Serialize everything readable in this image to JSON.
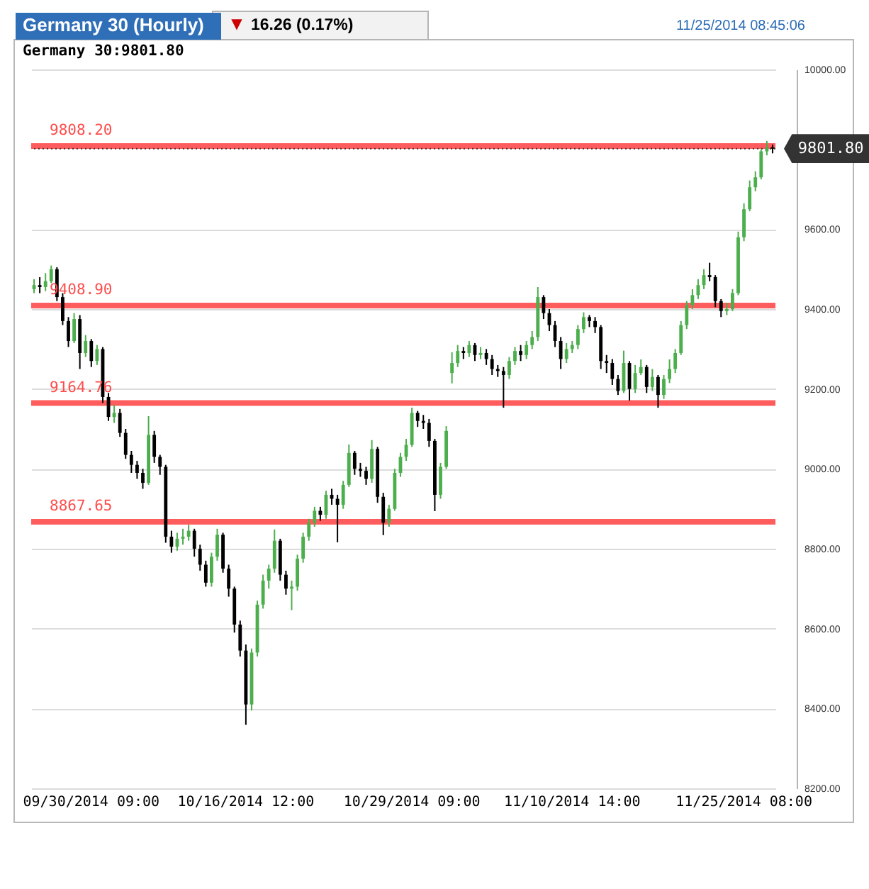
{
  "chart_data": {
    "type": "candlestick",
    "title": "Germany 30 (Hourly)",
    "annotations": [
      "▼",
      "16.26 (0.17%)",
      "11/25/2014 08:45:06",
      "Germany 30:9801.80"
    ],
    "categories": [
      null,
      null,
      null,
      null,
      null,
      null,
      null,
      null,
      null,
      null,
      "09/30/2014 09:00",
      null,
      null,
      null,
      null,
      null,
      null,
      null,
      null,
      null,
      null,
      null,
      null,
      null,
      null,
      null,
      null,
      null,
      null,
      null,
      null,
      null,
      null,
      null,
      null,
      null,
      null,
      "10/16/2014 12:00",
      null,
      null,
      null,
      null,
      null,
      null,
      null,
      null,
      null,
      null,
      null,
      null,
      null,
      null,
      null,
      null,
      null,
      null,
      null,
      null,
      null,
      null,
      null,
      null,
      null,
      null,
      null,
      null,
      "10/29/2014 09:00",
      null,
      null,
      null,
      null,
      null,
      null,
      null,
      null,
      null,
      null,
      null,
      null,
      null,
      null,
      null,
      null,
      null,
      null,
      null,
      null,
      null,
      null,
      null,
      null,
      null,
      null,
      null,
      "11/10/2014 14:00",
      null,
      null,
      null,
      null,
      null,
      null,
      null,
      null,
      null,
      null,
      null,
      null,
      null,
      null,
      null,
      null,
      null,
      null,
      null,
      null,
      null,
      null,
      null,
      null,
      null,
      null,
      null,
      null,
      null,
      "11/25/2014 08:00",
      null,
      null,
      null,
      null,
      null
    ],
    "ohlc": [
      [
        9450,
        9475,
        9440,
        9460
      ],
      [
        9460,
        9480,
        9440,
        9455
      ],
      [
        9455,
        9490,
        9445,
        9470
      ],
      [
        9470,
        9509,
        9465,
        9500
      ],
      [
        9500,
        9505,
        9420,
        9430
      ],
      [
        9430,
        9440,
        9360,
        9370
      ],
      [
        9370,
        9380,
        9305,
        9320
      ],
      [
        9320,
        9390,
        9315,
        9375
      ],
      [
        9375,
        9385,
        9250,
        9290
      ],
      [
        9290,
        9335,
        9280,
        9320
      ],
      [
        9320,
        9325,
        9255,
        9270
      ],
      [
        9270,
        9310,
        9260,
        9300
      ],
      [
        9300,
        9305,
        9165,
        9180
      ],
      [
        9180,
        9190,
        9120,
        9130
      ],
      [
        9130,
        9160,
        9115,
        9140
      ],
      [
        9140,
        9150,
        9080,
        9090
      ],
      [
        9090,
        9100,
        9025,
        9035
      ],
      [
        9035,
        9045,
        8990,
        9010
      ],
      [
        9010,
        9020,
        8975,
        8990
      ],
      [
        8990,
        9000,
        8950,
        8965
      ],
      [
        8965,
        9132,
        8960,
        9085
      ],
      [
        9085,
        9095,
        9015,
        9030
      ],
      [
        9030,
        9035,
        8985,
        9005
      ],
      [
        9005,
        9010,
        8815,
        8830
      ],
      [
        8830,
        8845,
        8790,
        8805
      ],
      [
        8805,
        8840,
        8795,
        8825
      ],
      [
        8825,
        8850,
        8810,
        8830
      ],
      [
        8830,
        8860,
        8820,
        8845
      ],
      [
        8845,
        8850,
        8780,
        8800
      ],
      [
        8800,
        8810,
        8745,
        8760
      ],
      [
        8760,
        8770,
        8705,
        8715
      ],
      [
        8715,
        8790,
        8705,
        8780
      ],
      [
        8780,
        8850,
        8770,
        8835
      ],
      [
        8835,
        8840,
        8740,
        8750
      ],
      [
        8750,
        8760,
        8680,
        8700
      ],
      [
        8700,
        8705,
        8590,
        8610
      ],
      [
        8610,
        8620,
        8530,
        8545
      ],
      [
        8545,
        8560,
        8359,
        8410
      ],
      [
        8410,
        8550,
        8395,
        8540
      ],
      [
        8540,
        8670,
        8530,
        8660
      ],
      [
        8660,
        8735,
        8650,
        8720
      ],
      [
        8720,
        8760,
        8700,
        8750
      ],
      [
        8750,
        8848,
        8740,
        8820
      ],
      [
        8820,
        8825,
        8720,
        8735
      ],
      [
        8735,
        8745,
        8685,
        8700
      ],
      [
        8700,
        8720,
        8646,
        8705
      ],
      [
        8705,
        8785,
        8695,
        8775
      ],
      [
        8775,
        8840,
        8765,
        8830
      ],
      [
        8830,
        8875,
        8820,
        8865
      ],
      [
        8865,
        8905,
        8855,
        8895
      ],
      [
        8895,
        8905,
        8870,
        8885
      ],
      [
        8885,
        8945,
        8875,
        8935
      ],
      [
        8935,
        8950,
        8910,
        8925
      ],
      [
        8925,
        8935,
        8816,
        8910
      ],
      [
        8910,
        8970,
        8900,
        8960
      ],
      [
        8960,
        9061,
        8955,
        9040
      ],
      [
        9040,
        9045,
        8985,
        9000
      ],
      [
        9000,
        9015,
        8980,
        8995
      ],
      [
        8995,
        9005,
        8960,
        8975
      ],
      [
        8975,
        9072,
        8965,
        9050
      ],
      [
        9050,
        9055,
        8915,
        8930
      ],
      [
        8930,
        8940,
        8834,
        8865
      ],
      [
        8865,
        8910,
        8855,
        8900
      ],
      [
        8900,
        9000,
        8895,
        8990
      ],
      [
        8990,
        9040,
        8980,
        9030
      ],
      [
        9030,
        9075,
        9020,
        9060
      ],
      [
        9060,
        9153,
        9055,
        9140
      ],
      [
        9140,
        9145,
        9105,
        9120
      ],
      [
        9120,
        9135,
        9100,
        9115
      ],
      [
        9115,
        9125,
        9055,
        9070
      ],
      [
        9070,
        9075,
        8894,
        8935
      ],
      [
        8935,
        9015,
        8925,
        9005
      ],
      [
        9005,
        9107,
        9000,
        9095
      ],
      [
        9240,
        9292,
        9214,
        9265
      ],
      [
        9265,
        9310,
        9255,
        9295
      ],
      [
        9295,
        9305,
        9275,
        9290
      ],
      [
        9290,
        9320,
        9280,
        9310
      ],
      [
        9310,
        9315,
        9270,
        9285
      ],
      [
        9285,
        9305,
        9275,
        9290
      ],
      [
        9290,
        9300,
        9260,
        9275
      ],
      [
        9275,
        9285,
        9235,
        9250
      ],
      [
        9250,
        9260,
        9230,
        9245
      ],
      [
        9245,
        9255,
        9153,
        9235
      ],
      [
        9235,
        9280,
        9225,
        9270
      ],
      [
        9270,
        9305,
        9260,
        9295
      ],
      [
        9295,
        9310,
        9270,
        9285
      ],
      [
        9285,
        9320,
        9275,
        9310
      ],
      [
        9310,
        9345,
        9300,
        9330
      ],
      [
        9330,
        9455,
        9320,
        9430
      ],
      [
        9430,
        9435,
        9375,
        9390
      ],
      [
        9390,
        9400,
        9345,
        9360
      ],
      [
        9360,
        9370,
        9305,
        9320
      ],
      [
        9320,
        9330,
        9250,
        9275
      ],
      [
        9275,
        9315,
        9265,
        9300
      ],
      [
        9300,
        9320,
        9290,
        9310
      ],
      [
        9310,
        9360,
        9300,
        9350
      ],
      [
        9350,
        9392,
        9340,
        9380
      ],
      [
        9380,
        9385,
        9355,
        9370
      ],
      [
        9370,
        9380,
        9340,
        9355
      ],
      [
        9355,
        9360,
        9250,
        9270
      ],
      [
        9270,
        9285,
        9240,
        9265
      ],
      [
        9265,
        9275,
        9210,
        9225
      ],
      [
        9225,
        9235,
        9185,
        9195
      ],
      [
        9195,
        9296,
        9190,
        9265
      ],
      [
        9265,
        9270,
        9171,
        9200
      ],
      [
        9200,
        9260,
        9190,
        9240
      ],
      [
        9240,
        9274,
        9235,
        9255
      ],
      [
        9255,
        9260,
        9190,
        9205
      ],
      [
        9205,
        9250,
        9195,
        9230
      ],
      [
        9230,
        9235,
        9153,
        9185
      ],
      [
        9185,
        9235,
        9175,
        9225
      ],
      [
        9225,
        9274,
        9215,
        9250
      ],
      [
        9250,
        9300,
        9240,
        9290
      ],
      [
        9290,
        9370,
        9285,
        9360
      ],
      [
        9360,
        9420,
        9350,
        9410
      ],
      [
        9410,
        9450,
        9400,
        9435
      ],
      [
        9435,
        9475,
        9425,
        9460
      ],
      [
        9460,
        9500,
        9450,
        9485
      ],
      [
        9485,
        9516,
        9470,
        9480
      ],
      [
        9480,
        9485,
        9405,
        9420
      ],
      [
        9420,
        9425,
        9380,
        9395
      ],
      [
        9395,
        9416,
        9385,
        9400
      ],
      [
        9400,
        9450,
        9395,
        9440
      ],
      [
        9440,
        9594,
        9435,
        9580
      ],
      [
        9580,
        9665,
        9570,
        9650
      ],
      [
        9650,
        9722,
        9645,
        9705
      ],
      [
        9705,
        9745,
        9695,
        9730
      ],
      [
        9730,
        9800,
        9725,
        9795
      ],
      [
        9795,
        9821,
        9785,
        9805
      ],
      [
        9805,
        9812,
        9790,
        9801.8
      ]
    ],
    "colors": [
      "#4cae4c",
      "#000000",
      "#4cae4c",
      "#4cae4c",
      "#000000",
      "#000000",
      "#000000",
      "#4cae4c",
      "#000000",
      "#4cae4c",
      "#000000",
      "#4cae4c",
      "#000000",
      "#000000",
      "#4cae4c",
      "#000000",
      "#000000",
      "#000000",
      "#000000",
      "#000000",
      "#4cae4c",
      "#000000",
      "#000000",
      "#000000",
      "#000000",
      "#4cae4c",
      "#4cae4c",
      "#4cae4c",
      "#000000",
      "#000000",
      "#000000",
      "#4cae4c",
      "#4cae4c",
      "#000000",
      "#000000",
      "#000000",
      "#000000",
      "#000000",
      "#4cae4c",
      "#4cae4c",
      "#4cae4c",
      "#4cae4c",
      "#4cae4c",
      "#000000",
      "#000000",
      "#4cae4c",
      "#4cae4c",
      "#4cae4c",
      "#4cae4c",
      "#4cae4c",
      "#000000",
      "#4cae4c",
      "#000000",
      "#000000",
      "#4cae4c",
      "#4cae4c",
      "#000000",
      "#000000",
      "#000000",
      "#4cae4c",
      "#000000",
      "#000000",
      "#4cae4c",
      "#4cae4c",
      "#4cae4c",
      "#4cae4c",
      "#4cae4c",
      "#000000",
      "#000000",
      "#000000",
      "#000000",
      "#4cae4c",
      "#4cae4c",
      "#4cae4c",
      "#4cae4c",
      "#000000",
      "#4cae4c",
      "#000000",
      "#4cae4c",
      "#000000",
      "#000000",
      "#000000",
      "#000000",
      "#4cae4c",
      "#4cae4c",
      "#000000",
      "#4cae4c",
      "#4cae4c",
      "#4cae4c",
      "#000000",
      "#000000",
      "#000000",
      "#000000",
      "#4cae4c",
      "#4cae4c",
      "#4cae4c",
      "#4cae4c",
      "#000000",
      "#000000",
      "#000000",
      "#000000",
      "#000000",
      "#000000",
      "#4cae4c",
      "#000000",
      "#4cae4c",
      "#4cae4c",
      "#000000",
      "#4cae4c",
      "#000000",
      "#4cae4c",
      "#4cae4c",
      "#4cae4c",
      "#4cae4c",
      "#4cae4c",
      "#4cae4c",
      "#4cae4c",
      "#4cae4c",
      "#000000",
      "#000000",
      "#000000",
      "#4cae4c",
      "#4cae4c",
      "#4cae4c",
      "#4cae4c",
      "#4cae4c",
      "#4cae4c",
      "#4cae4c",
      "#4cae4c",
      "#000000"
    ],
    "ylim": [
      8200,
      10000
    ],
    "yticks": [
      {
        "value": 8200,
        "label": "8200.00"
      },
      {
        "value": 8400,
        "label": "8400.00"
      },
      {
        "value": 8600,
        "label": "8600.00"
      },
      {
        "value": 8800,
        "label": "8800.00"
      },
      {
        "value": 9000,
        "label": "9000.00"
      },
      {
        "value": 9200,
        "label": "9200.00"
      },
      {
        "value": 9400,
        "label": "9400.00"
      },
      {
        "value": 9600,
        "label": "9600.00"
      },
      {
        "value": 10000,
        "label": "10000.00"
      }
    ],
    "grid": "y",
    "ref_lines": [
      {
        "axis": "y",
        "value": 9808.2,
        "label": "9808.20",
        "color": "#ff4b4b"
      },
      {
        "axis": "y",
        "value": 9408.9,
        "label": "9408.90",
        "color": "#ff4b4b"
      },
      {
        "axis": "y",
        "value": 9164.76,
        "label": "9164.76",
        "color": "#ff4b4b"
      },
      {
        "axis": "y",
        "value": 8867.65,
        "label": "8867.65",
        "color": "#ff4b4b"
      },
      {
        "axis": "y",
        "value": 9801.8,
        "label": "9801.80",
        "color": "#333333",
        "line_style": "dotted"
      }
    ]
  }
}
